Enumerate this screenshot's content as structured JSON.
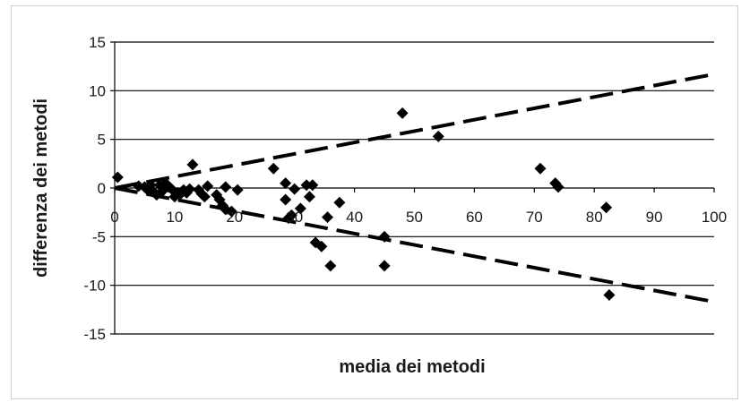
{
  "chart_data": {
    "type": "scatter",
    "title": "",
    "xlabel": "media dei metodi",
    "ylabel": "differenza dei metodi",
    "xlim": [
      0,
      100
    ],
    "ylim": [
      -15,
      15
    ],
    "x_ticks": [
      "0",
      "10",
      "20",
      "30",
      "40",
      "50",
      "60",
      "70",
      "80",
      "90",
      "100"
    ],
    "y_ticks": [
      "15",
      "10",
      "5",
      "0",
      "-5",
      "-10",
      "-15"
    ],
    "grid": "horizontal",
    "marker": "diamond",
    "marker_color": "#000000",
    "series": [
      {
        "points": [
          [
            0.5,
            1.1
          ],
          [
            4,
            0.2
          ],
          [
            5,
            0.1
          ],
          [
            5.5,
            -0.2
          ],
          [
            6,
            0.3
          ],
          [
            6.5,
            -0.4
          ],
          [
            7,
            -0.7
          ],
          [
            7.5,
            0.3
          ],
          [
            8,
            -0.3
          ],
          [
            8.5,
            0.5
          ],
          [
            9,
            0.1
          ],
          [
            9.5,
            -0.1
          ],
          [
            10,
            -0.9
          ],
          [
            10.5,
            -0.5
          ],
          [
            11,
            -0.6
          ],
          [
            11.5,
            -0.2
          ],
          [
            12,
            -0.5
          ],
          [
            12.5,
            -0.1
          ],
          [
            13,
            2.4
          ],
          [
            14,
            -0.2
          ],
          [
            14.5,
            -0.6
          ],
          [
            15,
            -0.9
          ],
          [
            15.5,
            0.2
          ],
          [
            17,
            -0.7
          ],
          [
            17.5,
            -1.2
          ],
          [
            18,
            -1.8
          ],
          [
            18.5,
            -2.2
          ],
          [
            18.5,
            0.1
          ],
          [
            19.5,
            -2.4
          ],
          [
            20.5,
            -0.2
          ],
          [
            26.5,
            2.0
          ],
          [
            28.5,
            0.5
          ],
          [
            28.5,
            -1.2
          ],
          [
            29,
            -3.1
          ],
          [
            29.5,
            -2.8
          ],
          [
            30,
            -0.1
          ],
          [
            31,
            -2.1
          ],
          [
            32,
            0.3
          ],
          [
            32.5,
            -0.9
          ],
          [
            33,
            0.3
          ],
          [
            33.5,
            -5.6
          ],
          [
            34.5,
            -6.0
          ],
          [
            35.5,
            -3.0
          ],
          [
            36,
            -8.0
          ],
          [
            37.5,
            -1.5
          ],
          [
            45,
            -5.0
          ],
          [
            45,
            -8.0
          ],
          [
            48,
            7.7
          ],
          [
            54,
            5.3
          ],
          [
            71,
            2.0
          ],
          [
            73.5,
            0.5
          ],
          [
            74,
            0.1
          ],
          [
            82,
            -2.0
          ],
          [
            82.5,
            -11.0
          ]
        ]
      }
    ],
    "reference_lines": [
      {
        "style": "dashed",
        "from": [
          0,
          0
        ],
        "to": [
          100,
          11.7
        ]
      },
      {
        "style": "dashed",
        "from": [
          0,
          0
        ],
        "to": [
          100,
          -11.7
        ]
      }
    ]
  }
}
